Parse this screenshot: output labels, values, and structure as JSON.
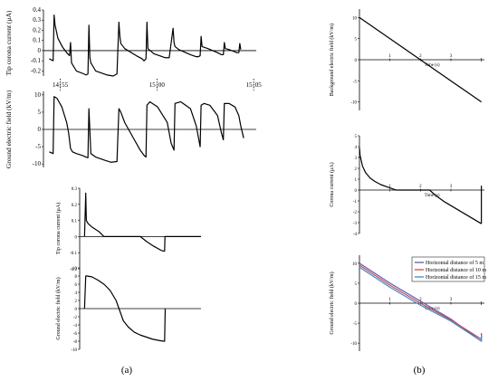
{
  "panel_labels": {
    "a": "(a)",
    "b": "(b)"
  },
  "colors": {
    "trace": "#000000",
    "axis": "#000000",
    "s5": "#5a5ab4",
    "s10": "#d04848",
    "s15": "#3a8ad0"
  },
  "chart_data": [
    {
      "id": "a1",
      "type": "line",
      "ylabel": "Tip corona current (μA)",
      "ylim": [
        -0.25,
        0.4
      ],
      "yticks": [
        "0.4",
        "0.3",
        "0.2",
        "0.1",
        "0",
        "-0.1",
        "-0.2"
      ],
      "yticks_values": [
        0.4,
        0.3,
        0.2,
        0.1,
        0,
        -0.1,
        -0.2
      ],
      "time_marks": [
        "14 : 55",
        "15 : 00",
        "15 : 05"
      ],
      "time_marks_min": [
        0,
        5,
        10
      ],
      "xlim_min": [
        -0.4,
        10.6
      ],
      "series": [
        {
          "x": [
            -0.1,
            0.1,
            0.15,
            0.2,
            0.35,
            0.6,
            0.8,
            0.95,
            1.0,
            1.05,
            1.3,
            1.7,
            1.8,
            1.9,
            1.95,
            2.0,
            2.05,
            2.3,
            2.9,
            3.2,
            3.4,
            3.5,
            3.55,
            3.6,
            3.8,
            4.4,
            4.7,
            4.8,
            4.9,
            4.95,
            5.0,
            5.3,
            5.9,
            6.1,
            6.3,
            6.35,
            6.4,
            6.6,
            7.2,
            7.5,
            7.6,
            7.7,
            7.75,
            7.8,
            8.1,
            8.6,
            8.8,
            8.9,
            8.95,
            9.0,
            9.2,
            9.6,
            9.7,
            9.75,
            9.8
          ],
          "y": [
            -0.08,
            -0.1,
            0.35,
            0.25,
            0.12,
            0.03,
            -0.02,
            -0.05,
            0.08,
            -0.12,
            -0.2,
            -0.23,
            -0.24,
            -0.23,
            0.25,
            -0.07,
            -0.12,
            -0.2,
            -0.24,
            -0.25,
            -0.23,
            0.28,
            0.14,
            0.07,
            0.02,
            -0.05,
            -0.08,
            -0.1,
            -0.08,
            0.28,
            0.02,
            -0.03,
            -0.07,
            -0.07,
            0.22,
            0.08,
            0.04,
            0.01,
            -0.04,
            -0.06,
            -0.06,
            -0.05,
            0.14,
            0.04,
            0.02,
            -0.02,
            -0.04,
            -0.04,
            0.08,
            0.02,
            0.01,
            -0.02,
            -0.02,
            0.07,
            0.01
          ]
        }
      ]
    },
    {
      "id": "a2",
      "type": "line",
      "ylabel": "Ground electric field (kV/m)",
      "ylim": [
        -11,
        11
      ],
      "yticks": [
        "10",
        "5",
        "0",
        "-5",
        "-10"
      ],
      "yticks_values": [
        10,
        5,
        0,
        -5,
        -10
      ],
      "xlim_min": [
        -0.4,
        10.6
      ],
      "series": [
        {
          "x": [
            -0.1,
            0.1,
            0.15,
            0.3,
            0.55,
            0.8,
            0.9,
            1.0,
            1.1,
            1.3,
            1.6,
            1.8,
            1.9,
            1.95,
            2.05,
            2.3,
            2.8,
            3.1,
            3.4,
            3.5,
            3.6,
            3.8,
            4.2,
            4.6,
            4.8,
            4.9,
            4.95,
            5.1,
            5.5,
            6.0,
            6.2,
            6.35,
            6.4,
            6.7,
            7.2,
            7.5,
            7.7,
            7.75,
            7.9,
            8.2,
            8.6,
            8.8,
            8.9,
            8.95,
            9.2,
            9.5,
            9.7,
            9.8,
            9.95
          ],
          "y": [
            -6.5,
            -7,
            9.5,
            9,
            6.5,
            2,
            -1,
            -5.5,
            -6.5,
            -7,
            -7.5,
            -8,
            -8.2,
            6,
            -7,
            -8,
            -9,
            -9.5,
            -9.3,
            6,
            5,
            2,
            -2,
            -6,
            -7.5,
            -8,
            7,
            8,
            6.5,
            2,
            -4,
            -6,
            7.5,
            8,
            6,
            1,
            -5,
            7,
            7.5,
            7,
            4,
            -1,
            -3,
            7.5,
            7.5,
            6.5,
            4,
            1,
            -2.5
          ]
        }
      ]
    },
    {
      "id": "a3",
      "type": "line",
      "ylabel": "Tip corona current (μA)",
      "ylim": [
        -0.2,
        0.3
      ],
      "yticks": [
        "0.3",
        "0.2",
        "0.1",
        "0",
        "-0.1",
        "-0.2"
      ],
      "yticks_values": [
        0.3,
        0.2,
        0.1,
        0,
        -0.1,
        -0.2
      ],
      "xlim": [
        0,
        10
      ],
      "series": [
        {
          "x": [
            0.4,
            0.5,
            0.55,
            0.7,
            1.0,
            1.6,
            2.0,
            5.0,
            5.5,
            6.1,
            6.7,
            6.9,
            7.0,
            7.03,
            7.1,
            10
          ],
          "y": [
            0,
            0.27,
            0.1,
            0.08,
            0.06,
            0.03,
            0,
            0,
            -0.03,
            -0.06,
            -0.085,
            -0.09,
            -0.09,
            0,
            0,
            0
          ]
        }
      ]
    },
    {
      "id": "a4",
      "type": "line",
      "ylabel": "Ground electric field (kV/m)",
      "ylim": [
        -10,
        10
      ],
      "yticks": [
        "10",
        "8",
        "6",
        "4",
        "2",
        "0",
        "-2",
        "-4",
        "-6",
        "-8",
        "-10"
      ],
      "yticks_values": [
        10,
        8,
        6,
        4,
        2,
        0,
        -2,
        -4,
        -6,
        -8,
        -10
      ],
      "xlim": [
        0,
        10
      ],
      "series": [
        {
          "x": [
            0.4,
            0.5,
            0.6,
            1.0,
            1.5,
            2.0,
            2.5,
            3.0,
            3.3,
            3.6,
            4.0,
            4.5,
            5.0,
            5.5,
            6.0,
            6.5,
            6.9,
            7.0,
            7.05
          ],
          "y": [
            0,
            8,
            8,
            7.8,
            7,
            6,
            4.5,
            2,
            -0.5,
            -3,
            -4.5,
            -5.8,
            -6.5,
            -7,
            -7.5,
            -7.8,
            -8,
            -8,
            0
          ]
        }
      ]
    },
    {
      "id": "b1",
      "type": "line",
      "ylabel": "Background electric field (kV/m)",
      "xlabel": "Time (s)",
      "ylim": [
        -12,
        12
      ],
      "yticks": [
        "10",
        "5",
        "0",
        "-5",
        "-10"
      ],
      "yticks_values": [
        10,
        5,
        0,
        -5,
        -10
      ],
      "xlim": [
        0,
        4.1
      ],
      "xticks": [
        "1",
        "2",
        "3"
      ],
      "xticks_values": [
        1,
        2,
        3
      ],
      "series": [
        {
          "x": [
            0,
            4
          ],
          "y": [
            10,
            -10
          ]
        }
      ]
    },
    {
      "id": "b2",
      "type": "line",
      "ylabel": "Corona current (μA)",
      "xlabel": "Time (s)",
      "ylim": [
        -4,
        5
      ],
      "yticks": [
        "5",
        "4",
        "3",
        "2",
        "1",
        "0",
        "-1",
        "-2",
        "-3",
        "-4"
      ],
      "yticks_values": [
        5,
        4,
        3,
        2,
        1,
        0,
        -1,
        -2,
        -3,
        -4
      ],
      "xlim": [
        0,
        4.1
      ],
      "xticks": [
        "1",
        "2",
        "3"
      ],
      "xticks_values": [
        1,
        2,
        3
      ],
      "series": [
        {
          "x": [
            0,
            0.02,
            0.1,
            0.2,
            0.35,
            0.5,
            0.7,
            0.9,
            1.05,
            1.15,
            1.2
          ],
          "y": [
            3.9,
            3.2,
            2.2,
            1.6,
            1.1,
            0.8,
            0.5,
            0.3,
            0.15,
            0.05,
            0
          ]
        },
        {
          "x": [
            1.2,
            2.3
          ],
          "y": [
            0,
            0
          ]
        },
        {
          "x": [
            2.3,
            2.5,
            2.8,
            3.1,
            3.4,
            3.7,
            4.0
          ],
          "y": [
            0,
            -0.5,
            -1.1,
            -1.6,
            -2.1,
            -2.6,
            -3.1
          ]
        },
        {
          "x": [
            4.0,
            4.0
          ],
          "y": [
            -3.1,
            0.4
          ]
        }
      ]
    },
    {
      "id": "b3",
      "type": "line",
      "ylabel": "Ground electric field (kV/m)",
      "xlabel": "Time (s)",
      "ylim": [
        -12,
        12
      ],
      "yticks": [
        "10",
        "5",
        "0",
        "-5",
        "-10"
      ],
      "yticks_values": [
        10,
        5,
        0,
        -5,
        -10
      ],
      "xlim": [
        0,
        4.1
      ],
      "xticks": [
        "1",
        "2",
        "3"
      ],
      "xticks_values": [
        1,
        2,
        3
      ],
      "legend": "top-right",
      "series": [
        {
          "name": "Horizontal distance of 5 m",
          "color": "#5a5ab4",
          "x": [
            0,
            1,
            2,
            3,
            4,
            4.0
          ],
          "y": [
            10,
            5,
            0.5,
            -4,
            -9.5,
            -7.5
          ]
        },
        {
          "name": "Horizontal distance of 10 m",
          "color": "#d04848",
          "x": [
            0,
            1,
            2,
            3,
            4,
            4.0
          ],
          "y": [
            9.5,
            4.5,
            0,
            -4.2,
            -9,
            -7.5
          ]
        },
        {
          "name": "Horizontal distance of 15 m",
          "color": "#3a8ad0",
          "x": [
            0,
            1,
            2,
            3,
            4,
            4.0
          ],
          "y": [
            9,
            4,
            -0.5,
            -4.5,
            -9.5,
            -8
          ]
        }
      ]
    }
  ]
}
